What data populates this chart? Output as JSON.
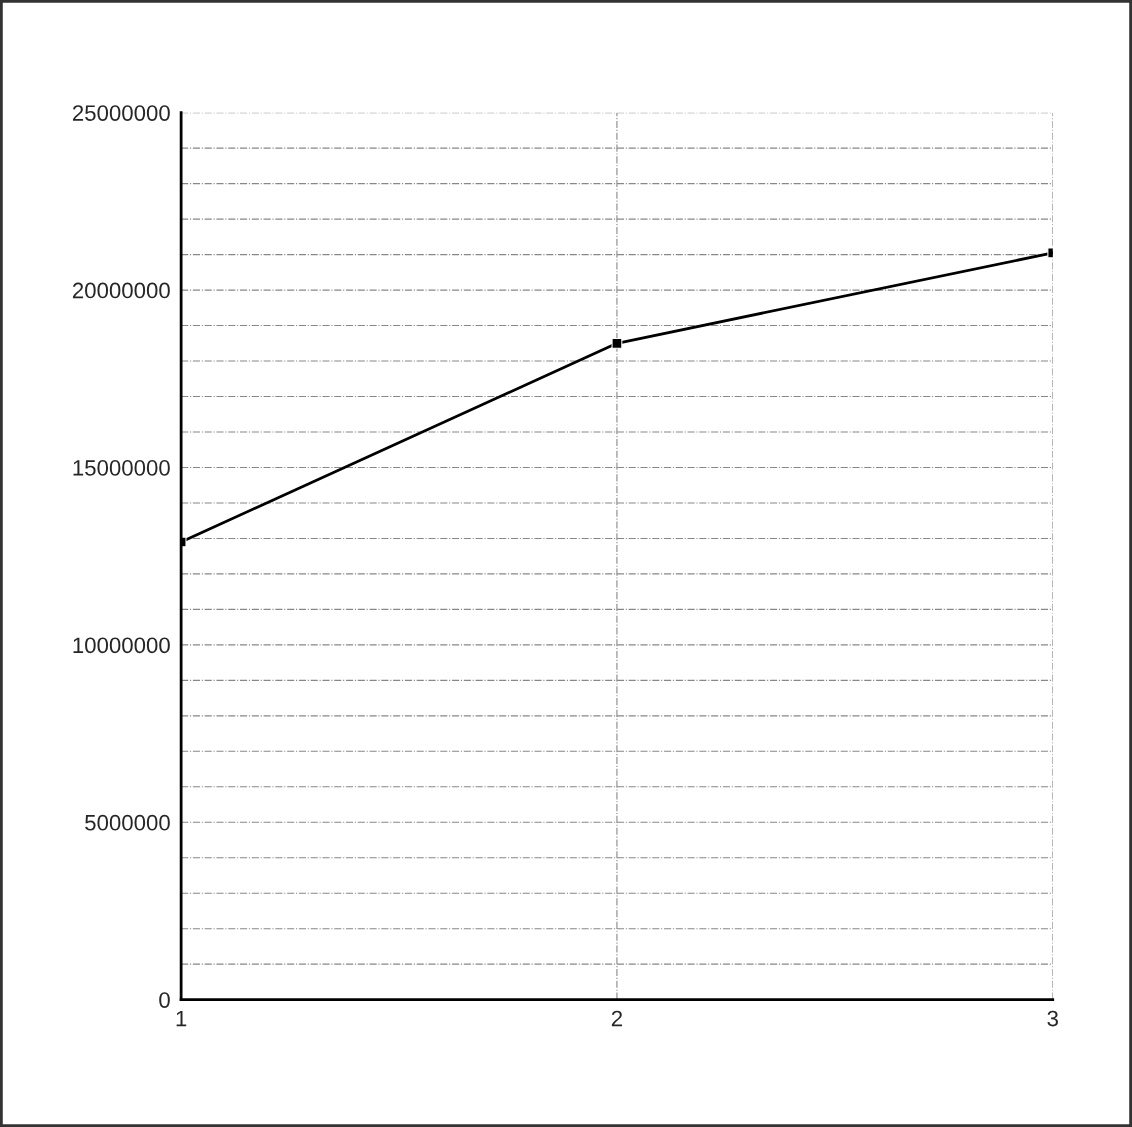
{
  "chart_data": {
    "type": "line",
    "x": [
      1,
      2,
      3
    ],
    "series": [
      {
        "color": "#000000",
        "values": [
          12900000,
          18500000,
          21050000
        ]
      }
    ],
    "xlim": [
      1,
      3
    ],
    "xticks": [
      1,
      2,
      3
    ],
    "ylim": [
      0,
      25000000
    ],
    "yticks": [
      0,
      {
        "value": 1000000,
        "label": null
      },
      {
        "value": 2000000,
        "label": null
      },
      {
        "value": 3000000,
        "label": null
      },
      {
        "value": 4000000,
        "label": null
      },
      5000000,
      {
        "value": 6000000,
        "label": null
      },
      {
        "value": 7000000,
        "label": null
      },
      {
        "value": 8000000,
        "label": null
      },
      {
        "value": 9000000,
        "label": null
      },
      10000000,
      {
        "value": 11000000,
        "label": null
      },
      {
        "value": 12000000,
        "label": null
      },
      {
        "value": 13000000,
        "label": null
      },
      {
        "value": 14000000,
        "label": null
      },
      15000000,
      {
        "value": 16000000,
        "label": null
      },
      {
        "value": 17000000,
        "label": null
      },
      {
        "value": 18000000,
        "label": null
      },
      {
        "value": 19000000,
        "label": null
      },
      20000000,
      {
        "value": 21000000,
        "label": null
      },
      {
        "value": 22000000,
        "label": null
      },
      {
        "value": 23000000,
        "label": null
      },
      {
        "value": 24000000,
        "label": null
      },
      25000000
    ],
    "grid": true,
    "marker": "square",
    "line_style": "solid"
  }
}
